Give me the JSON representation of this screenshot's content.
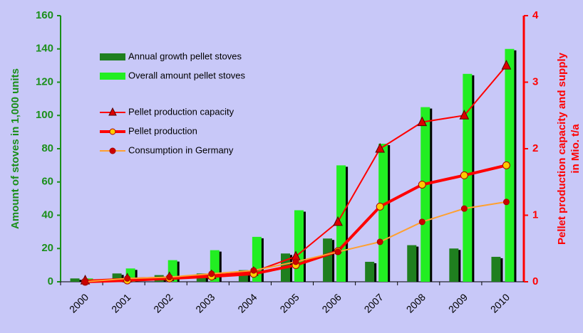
{
  "chart_data": {
    "type": "bar",
    "categories": [
      "2000",
      "2001",
      "2002",
      "2003",
      "2004",
      "2005",
      "2006",
      "2007",
      "2008",
      "2009",
      "2010"
    ],
    "ylabel": "Amount of stoves  in 1,000 units",
    "y2label": [
      "Pellet production capacity and supply",
      "in  Mio. t/a"
    ],
    "ylim": [
      0,
      160
    ],
    "yticks": [
      0,
      20,
      40,
      60,
      80,
      100,
      120,
      140,
      160
    ],
    "y2lim": [
      0,
      4
    ],
    "y2ticks": [
      0,
      1,
      2,
      3,
      4
    ],
    "series": [
      {
        "name": "Annual growth pellet stoves",
        "type": "bar",
        "color": "#1f7f1f",
        "values": [
          2,
          5,
          4,
          5,
          7,
          17,
          26,
          12,
          22,
          20,
          15
        ]
      },
      {
        "name": "Overall amount pellet stoves",
        "type": "bar",
        "color": "#22ee22",
        "values": [
          2,
          8,
          13,
          19,
          27,
          43,
          70,
          83,
          105,
          125,
          140
        ]
      },
      {
        "name": "Pellet production capacity",
        "type": "line",
        "axis": "y2",
        "color": "#ff0000",
        "marker": "triangle",
        "marker_color": "#dd0000",
        "values": [
          0.02,
          0.05,
          0.07,
          0.1,
          0.15,
          0.38,
          0.9,
          2.0,
          2.4,
          2.5,
          3.25
        ]
      },
      {
        "name": "Pellet production",
        "type": "line",
        "axis": "y2",
        "color": "#ff0000",
        "marker": "circle",
        "marker_color": "#ffcc00",
        "values": [
          0.0,
          0.02,
          0.05,
          0.08,
          0.12,
          0.25,
          0.46,
          1.13,
          1.46,
          1.6,
          1.75
        ]
      },
      {
        "name": "Consumption in Germany",
        "type": "line",
        "axis": "y2",
        "color": "#ffa030",
        "marker": "circle",
        "marker_color": "#cc0000",
        "values": [
          0.0,
          0.05,
          0.07,
          0.12,
          0.17,
          0.3,
          0.45,
          0.6,
          0.9,
          1.1,
          1.2
        ]
      }
    ]
  }
}
